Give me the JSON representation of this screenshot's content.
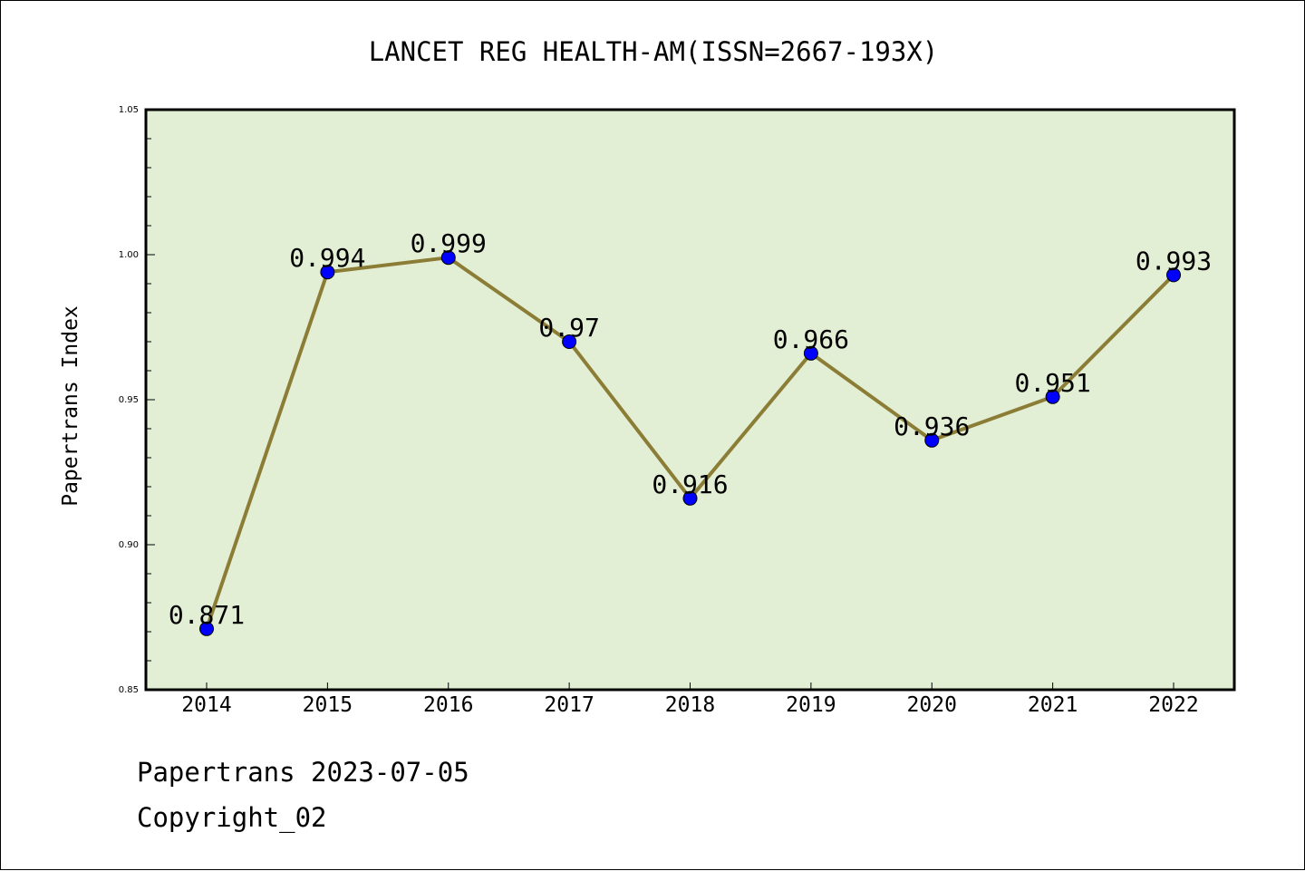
{
  "chart_data": {
    "type": "line",
    "title": "LANCET REG HEALTH-AM(ISSN=2667-193X)",
    "xlabel": "",
    "ylabel": "Papertrans Index",
    "categories": [
      "2014",
      "2015",
      "2016",
      "2017",
      "2018",
      "2019",
      "2020",
      "2021",
      "2022"
    ],
    "series": [
      {
        "name": "Papertrans Index",
        "values": [
          0.871,
          0.994,
          0.999,
          0.97,
          0.916,
          0.966,
          0.936,
          0.951,
          0.993
        ],
        "labels": [
          "0.871",
          "0.994",
          "0.999",
          "0.97",
          "0.916",
          "0.966",
          "0.936",
          "0.951",
          "0.993"
        ]
      }
    ],
    "ylim": [
      0.85,
      1.05
    ],
    "yticks": [
      "0.85",
      "0.90",
      "0.95",
      "1.00",
      "1.05"
    ],
    "grid": false,
    "colors": {
      "line": "#8b7d35",
      "marker": "#0000ff",
      "plot_background": "#e2efd5"
    }
  },
  "footer": {
    "line1": "Papertrans 2023-07-05",
    "line2": "Copyright_02"
  }
}
